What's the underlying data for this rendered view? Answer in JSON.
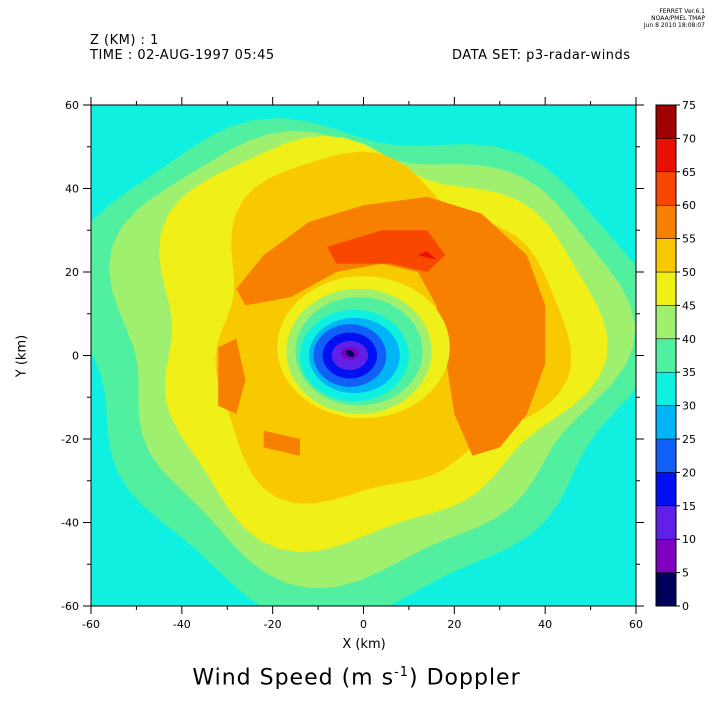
{
  "header": {
    "z_label": "Z (KM) : 1",
    "time_label": "TIME : 02-AUG-1997 05:45",
    "dataset_label": "DATA SET: p3-radar-winds",
    "stamp_line1": "FERRET  Ver.6.1",
    "stamp_line2": "NOAA/PMEL TMAP",
    "stamp_line3": "Jun  8 2010 18:08:07"
  },
  "chart_data": {
    "type": "heatmap",
    "title": "Wind Speed (m s",
    "title_sup": "-1",
    "title_tail": ") Doppler",
    "xlabel": "X (km)",
    "ylabel": "Y (km)",
    "xlim": [
      -60,
      60
    ],
    "ylim": [
      -60,
      60
    ],
    "x_ticks": [
      -60,
      -40,
      -20,
      0,
      20,
      40,
      60
    ],
    "y_ticks": [
      -60,
      -40,
      -20,
      0,
      20,
      40,
      60
    ],
    "x_tick_labels": [
      "-60",
      "-40",
      "-20",
      "0",
      "20",
      "40",
      "60"
    ],
    "y_tick_labels": [
      "-60",
      "-40",
      "-20",
      "0",
      "20",
      "40",
      "60"
    ],
    "colorbar": {
      "levels": [
        0,
        5,
        10,
        15,
        20,
        25,
        30,
        35,
        40,
        45,
        50,
        55,
        60,
        65,
        70,
        75
      ],
      "labels": [
        "0",
        "5",
        "10",
        "15",
        "20",
        "25",
        "30",
        "35",
        "40",
        "45",
        "50",
        "55",
        "60",
        "65",
        "70",
        "75"
      ],
      "colors": [
        "#00005a",
        "#7f00c0",
        "#6020e8",
        "#0010f0",
        "#1060f8",
        "#00b4f8",
        "#10f0e0",
        "#50f0a0",
        "#a0f070",
        "#f0f018",
        "#f8c800",
        "#f88000",
        "#f84800",
        "#e81000",
        "#a00000"
      ]
    },
    "contour_fields": [
      {
        "level": 30,
        "cx": -2,
        "cy": 0,
        "a": 65,
        "b": 62,
        "phase": 0.3,
        "amp": 0.08
      },
      {
        "level": 35,
        "cx": -2,
        "cy": 0,
        "a": 62,
        "b": 58,
        "phase": 0.5,
        "amp": 0.08
      },
      {
        "level": 40,
        "cx": -1,
        "cy": 2,
        "a": 55,
        "b": 52,
        "phase": 0.7,
        "amp": 0.09
      },
      {
        "level": 45,
        "cx": 0,
        "cy": 4,
        "a": 48,
        "b": 47,
        "phase": 1.2,
        "amp": 0.1
      },
      {
        "level": 50,
        "cx": 3,
        "cy": 6,
        "a": 38,
        "b": 40,
        "phase": 1.8,
        "amp": 0.12
      }
    ],
    "regions_55": [
      {
        "points": [
          [
            -28,
            16
          ],
          [
            -22,
            24
          ],
          [
            -12,
            32
          ],
          [
            0,
            36
          ],
          [
            14,
            38
          ],
          [
            26,
            34
          ],
          [
            36,
            24
          ],
          [
            40,
            12
          ],
          [
            40,
            -2
          ],
          [
            36,
            -14
          ],
          [
            30,
            -22
          ],
          [
            24,
            -24
          ],
          [
            20,
            -14
          ],
          [
            18,
            0
          ],
          [
            16,
            12
          ],
          [
            12,
            20
          ],
          [
            4,
            22
          ],
          [
            -6,
            20
          ],
          [
            -16,
            14
          ],
          [
            -26,
            12
          ]
        ]
      },
      {
        "points": [
          [
            -32,
            2
          ],
          [
            -28,
            4
          ],
          [
            -26,
            -6
          ],
          [
            -28,
            -14
          ],
          [
            -32,
            -12
          ]
        ]
      },
      {
        "points": [
          [
            -22,
            -18
          ],
          [
            -14,
            -20
          ],
          [
            -14,
            -24
          ],
          [
            -22,
            -22
          ]
        ]
      }
    ],
    "regions_60": [
      {
        "points": [
          [
            -8,
            26
          ],
          [
            4,
            30
          ],
          [
            14,
            30
          ],
          [
            18,
            24
          ],
          [
            14,
            20
          ],
          [
            6,
            22
          ],
          [
            -6,
            22
          ]
        ]
      }
    ],
    "regions_65": [
      {
        "points": [
          [
            12,
            24
          ],
          [
            14,
            25
          ],
          [
            16,
            23
          ]
        ]
      }
    ],
    "inner_rings": [
      {
        "level": 45,
        "cx": 0,
        "cy": 2,
        "rx": 19,
        "ry": 17
      },
      {
        "level": 40,
        "cx": -1,
        "cy": 1,
        "rx": 16,
        "ry": 15
      },
      {
        "level": 35,
        "cx": -1,
        "cy": 1,
        "rx": 14,
        "ry": 13
      },
      {
        "level": 30,
        "cx": -2,
        "cy": 0,
        "rx": 12,
        "ry": 11
      },
      {
        "level": 25,
        "cx": -2,
        "cy": 0,
        "rx": 10,
        "ry": 9
      },
      {
        "level": 20,
        "cx": -3,
        "cy": 0,
        "rx": 8,
        "ry": 7.5
      },
      {
        "level": 15,
        "cx": -3,
        "cy": 0,
        "rx": 6,
        "ry": 5.5
      },
      {
        "level": 10,
        "cx": -3,
        "cy": 0,
        "rx": 4,
        "ry": 3.5
      },
      {
        "level": 5,
        "cx": -3,
        "cy": 0.5,
        "rx": 2,
        "ry": 1.5
      }
    ]
  }
}
